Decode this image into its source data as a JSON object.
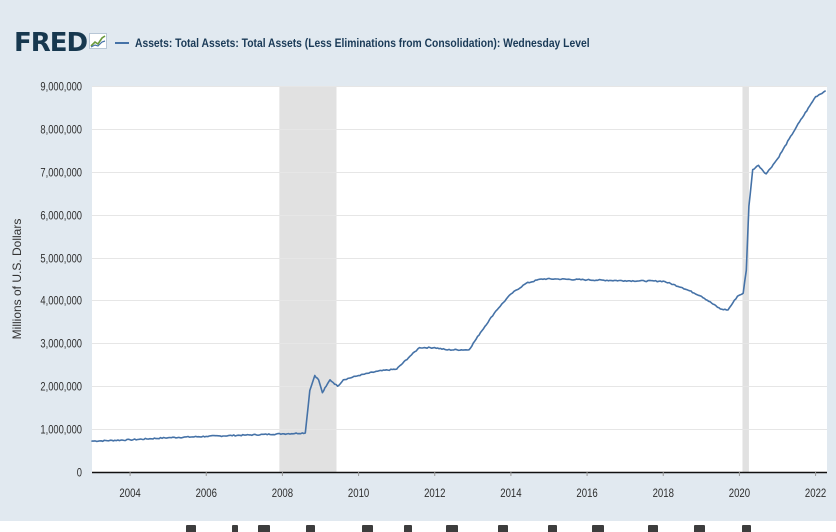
{
  "header": {
    "logo_text": "FRED",
    "legend_label": "Assets: Total Assets: Total Assets (Less Eliminations from Consolidation): Wednesday Level"
  },
  "colors": {
    "series": "#4572a7",
    "recession": "#e1e1e1",
    "frame": "#e1e9f0",
    "plot_bg": "#ffffff",
    "grid": "#e6e6e6",
    "axis_text": "#2e2e2e",
    "logo": "#17384f"
  },
  "chart_data": {
    "type": "line",
    "title": "Assets: Total Assets: Total Assets (Less Eliminations from Consolidation): Wednesday Level",
    "xlabel": "",
    "ylabel": "Millions of U.S. Dollars",
    "xlim": [
      2003.0,
      2022.3
    ],
    "ylim": [
      0,
      9000000
    ],
    "grid": true,
    "x_ticks": [
      2004,
      2006,
      2008,
      2010,
      2012,
      2014,
      2016,
      2018,
      2020,
      2022
    ],
    "x_tick_labels": [
      "2004",
      "2006",
      "2008",
      "2010",
      "2012",
      "2014",
      "2016",
      "2018",
      "2020",
      "2022"
    ],
    "y_ticks": [
      0,
      1000000,
      2000000,
      3000000,
      4000000,
      5000000,
      6000000,
      7000000,
      8000000,
      9000000
    ],
    "y_tick_labels": [
      "0",
      "1,000,000",
      "2,000,000",
      "3,000,000",
      "4,000,000",
      "5,000,000",
      "6,000,000",
      "7,000,000",
      "8,000,000",
      "9,000,000"
    ],
    "recessions": [
      {
        "start": 2007.92,
        "end": 2009.42
      },
      {
        "start": 2020.08,
        "end": 2020.25
      }
    ],
    "series": [
      {
        "name": "Assets: Total Assets: Total Assets (Less Eliminations from Consolidation): Wednesday Level",
        "x": [
          2003.0,
          2004.0,
          2005.0,
          2006.0,
          2007.0,
          2008.0,
          2008.6,
          2008.72,
          2008.85,
          2008.95,
          2009.05,
          2009.15,
          2009.25,
          2009.45,
          2009.6,
          2010.0,
          2010.5,
          2011.0,
          2011.35,
          2011.6,
          2012.0,
          2012.3,
          2012.9,
          2013.2,
          2013.6,
          2014.0,
          2014.4,
          2014.8,
          2015.2,
          2016.0,
          2017.0,
          2018.0,
          2018.5,
          2019.0,
          2019.5,
          2019.7,
          2019.95,
          2020.1,
          2020.18,
          2020.25,
          2020.35,
          2020.5,
          2020.7,
          2021.0,
          2021.5,
          2022.0,
          2022.25
        ],
        "values": [
          720000,
          750000,
          800000,
          830000,
          860000,
          890000,
          910000,
          1900000,
          2250000,
          2150000,
          1850000,
          2000000,
          2150000,
          2000000,
          2150000,
          2250000,
          2350000,
          2400000,
          2700000,
          2900000,
          2900000,
          2850000,
          2850000,
          3250000,
          3750000,
          4150000,
          4400000,
          4500000,
          4500000,
          4480000,
          4460000,
          4450000,
          4300000,
          4100000,
          3800000,
          3780000,
          4100000,
          4170000,
          4700000,
          6200000,
          7050000,
          7150000,
          6950000,
          7300000,
          8050000,
          8750000,
          8880000
        ]
      }
    ]
  }
}
